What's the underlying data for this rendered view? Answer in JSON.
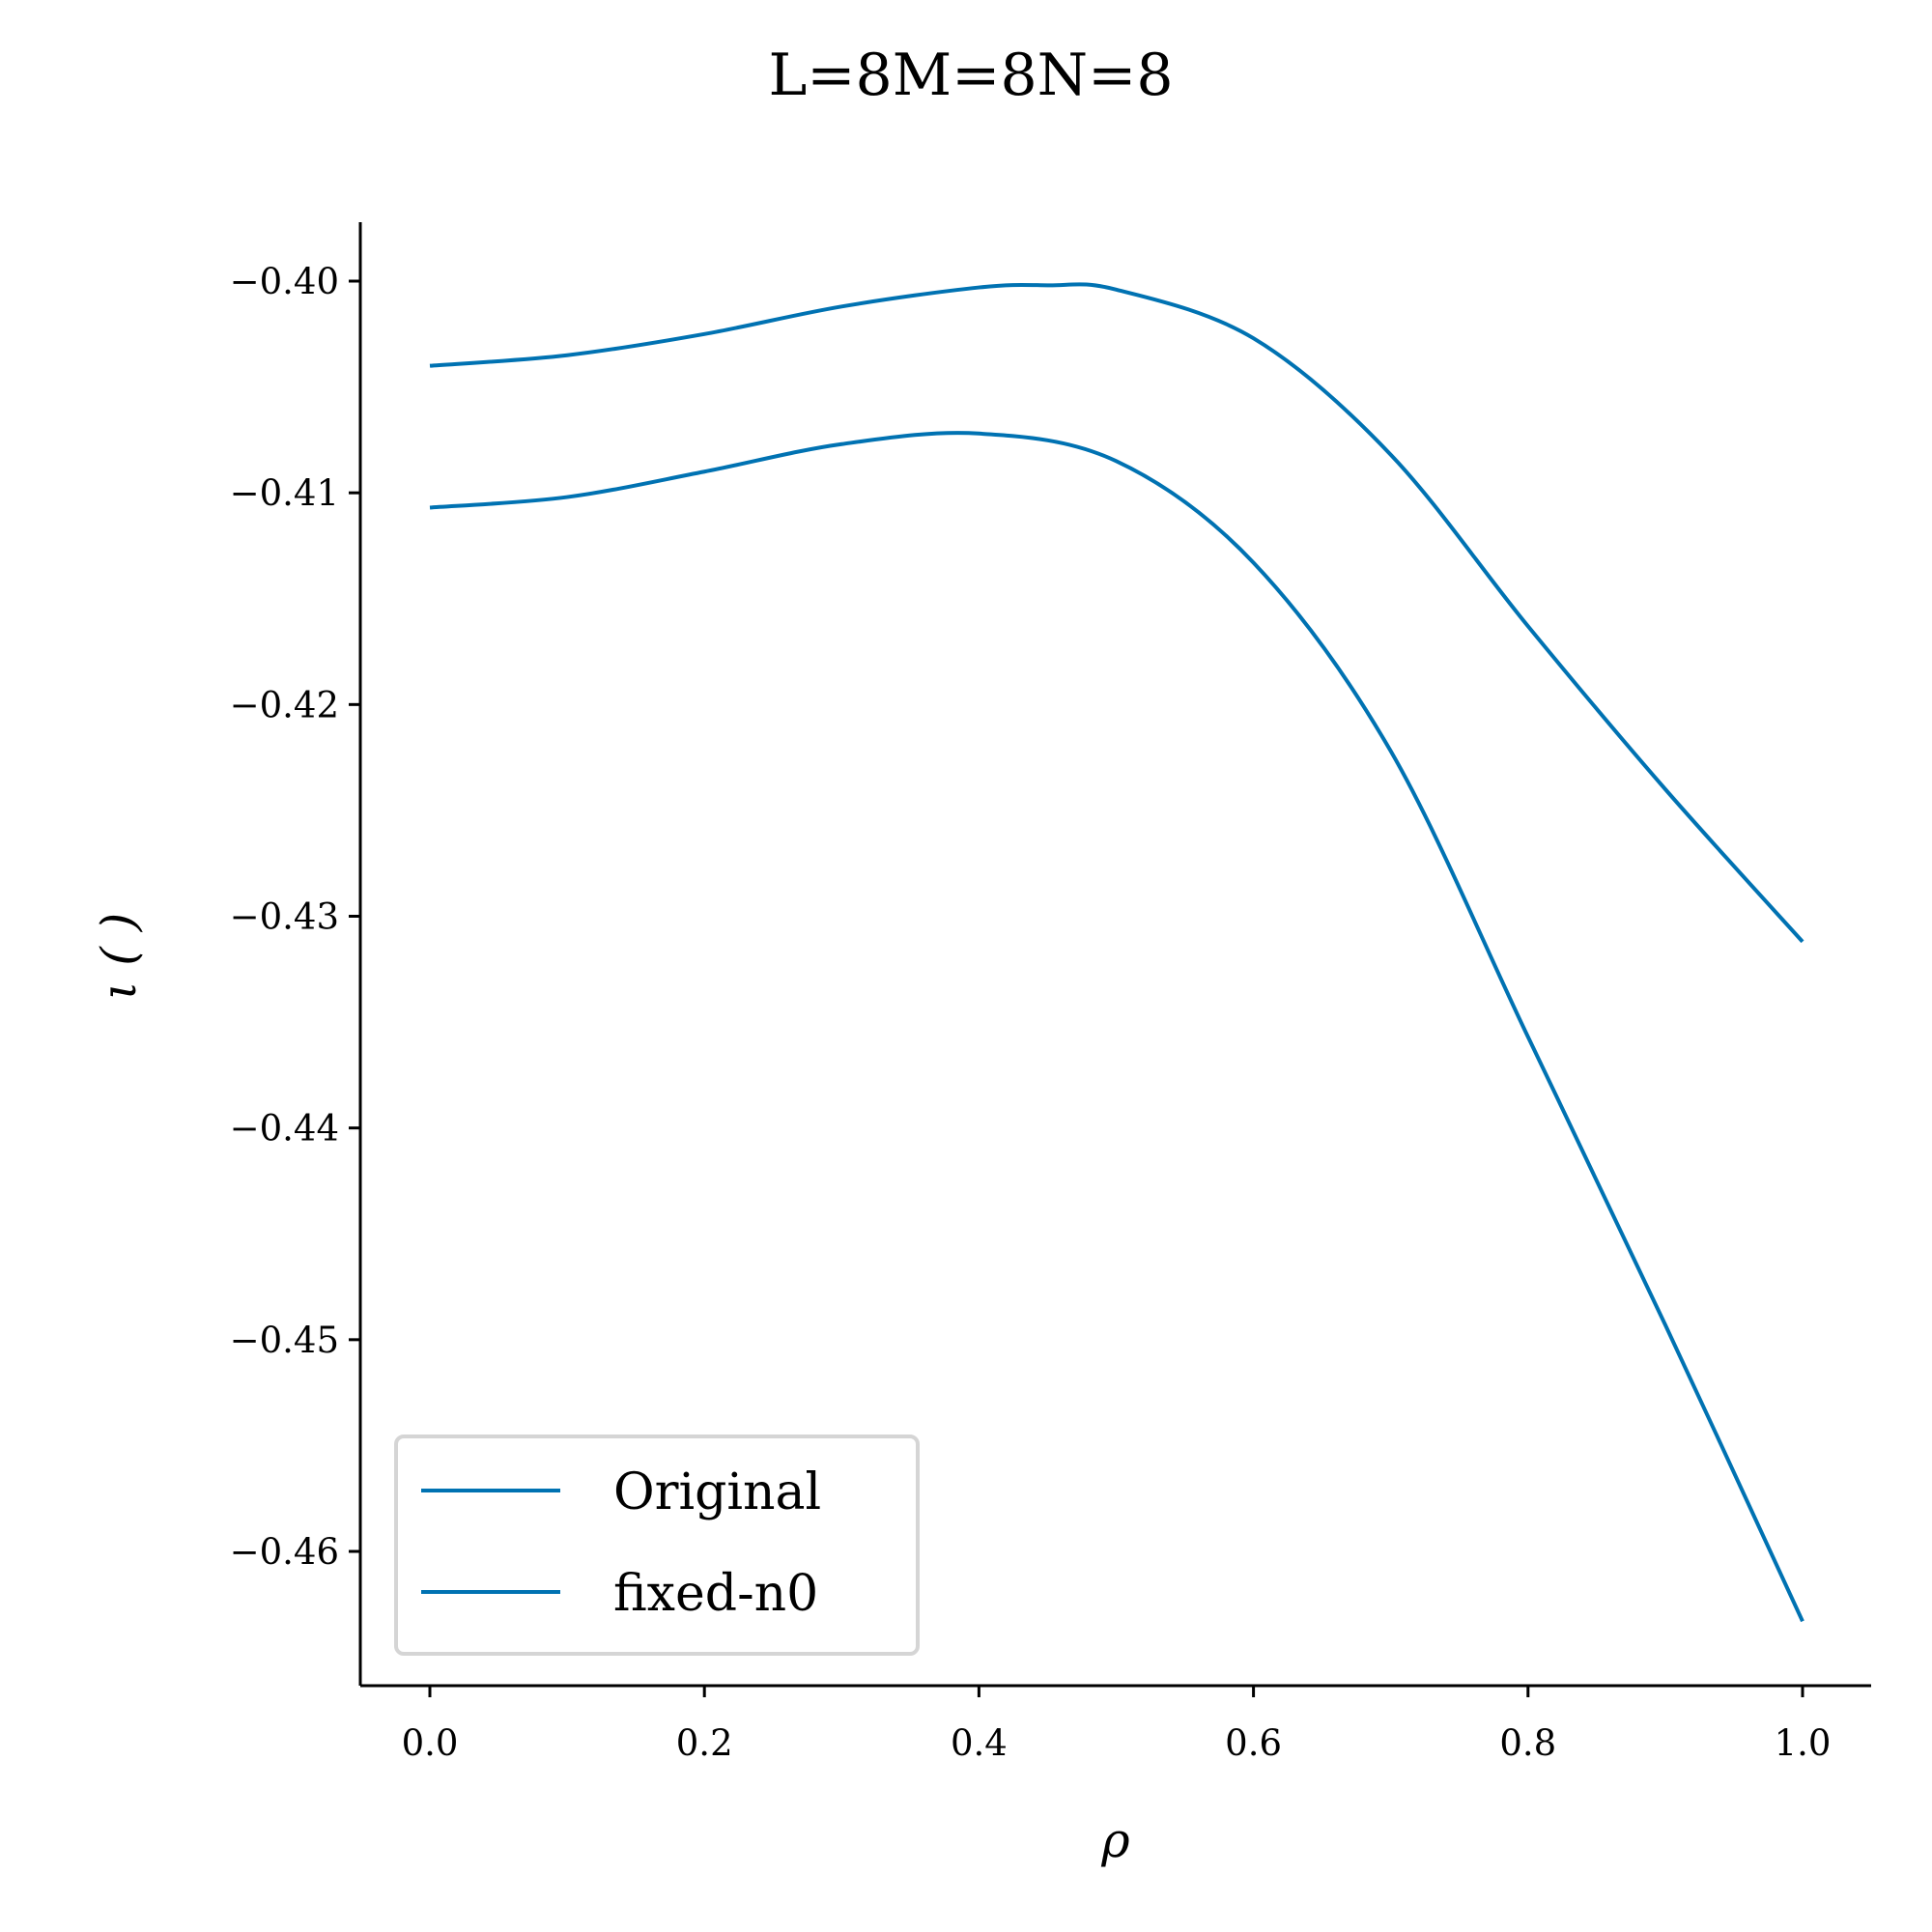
{
  "chart_data": {
    "type": "line",
    "title": "L=8M=8N=8",
    "xlabel": "ρ",
    "ylabel": "ι ( )",
    "xlim": [
      -0.05,
      1.05
    ],
    "ylim": [
      -0.4662,
      -0.3972
    ],
    "xticks": [
      0.0,
      0.2,
      0.4,
      0.6,
      0.8,
      1.0
    ],
    "xtick_labels": [
      "0.0",
      "0.2",
      "0.4",
      "0.6",
      "0.8",
      "1.0"
    ],
    "yticks": [
      -0.4,
      -0.41,
      -0.42,
      -0.43,
      -0.44,
      -0.45,
      -0.46
    ],
    "ytick_labels": [
      "−0.40",
      "−0.41",
      "−0.42",
      "−0.43",
      "−0.44",
      "−0.45",
      "−0.46"
    ],
    "grid": false,
    "legend_position": "lower-left",
    "line_color": "#0072B2",
    "series": [
      {
        "name": "Original",
        "x": [
          0.0,
          0.1,
          0.2,
          0.3,
          0.4,
          0.45,
          0.5,
          0.6,
          0.7,
          0.8,
          0.9,
          1.0
        ],
        "y": [
          -0.404,
          -0.4035,
          -0.4025,
          -0.4012,
          -0.4003,
          -0.4002,
          -0.4004,
          -0.4027,
          -0.4082,
          -0.4163,
          -0.424,
          -0.4312
        ]
      },
      {
        "name": "fixed-n0",
        "x": [
          0.0,
          0.1,
          0.2,
          0.3,
          0.4,
          0.5,
          0.6,
          0.7,
          0.8,
          0.9,
          1.0
        ],
        "y": [
          -0.4107,
          -0.4102,
          -0.409,
          -0.4077,
          -0.4072,
          -0.4085,
          -0.4133,
          -0.4222,
          -0.4357,
          -0.4493,
          -0.4633
        ]
      }
    ]
  }
}
